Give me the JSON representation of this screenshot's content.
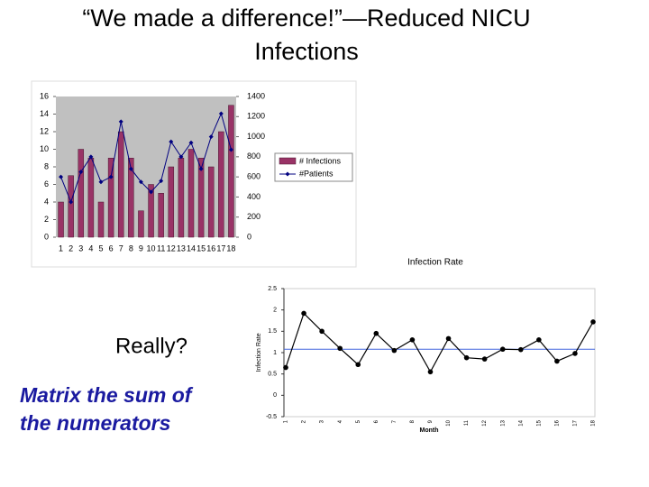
{
  "slide": {
    "title_lines": [
      "“We made a difference!”—Reduced NICU",
      "Infections"
    ],
    "question": "Really?",
    "note_lines": [
      "Matrix the sum of",
      "the numerators"
    ]
  },
  "chart_data": [
    {
      "type": "bar-line",
      "categories": [
        "1",
        "2",
        "3",
        "4",
        "5",
        "6",
        "7",
        "8",
        "9",
        "10",
        "11",
        "12",
        "13",
        "14",
        "15",
        "16",
        "17",
        "18"
      ],
      "series": [
        {
          "name": "# Infections",
          "color": "#993366",
          "values": [
            4,
            7,
            10,
            9,
            4,
            9,
            12,
            9,
            3,
            6,
            5,
            8,
            9,
            10,
            9,
            8,
            12,
            15
          ]
        },
        {
          "name": "#Patients",
          "color": "#000080",
          "axis": "y2",
          "values": [
            600,
            350,
            650,
            800,
            550,
            600,
            1150,
            680,
            550,
            450,
            560,
            950,
            800,
            940,
            680,
            1000,
            1230,
            870
          ]
        }
      ],
      "ylim": [
        0,
        16
      ],
      "yticks": [
        0,
        2,
        4,
        6,
        8,
        10,
        12,
        14,
        16
      ],
      "y2lim": [
        0,
        1400
      ],
      "y2ticks": [
        0,
        200,
        400,
        600,
        800,
        1000,
        1200,
        1400
      ],
      "plot_background": "#c0c0c0"
    },
    {
      "type": "line",
      "title": "Infection Rate",
      "x_label": "Month",
      "y_label": "Infection Rate",
      "categories": [
        "1",
        "2",
        "3",
        "4",
        "5",
        "6",
        "7",
        "8",
        "9",
        "10",
        "11",
        "12",
        "13",
        "14",
        "15",
        "16",
        "17",
        "18"
      ],
      "values": [
        0.65,
        1.92,
        1.5,
        1.1,
        0.72,
        1.45,
        1.05,
        1.3,
        0.55,
        1.33,
        0.88,
        0.85,
        1.08,
        1.07,
        1.3,
        0.8,
        0.98,
        1.72
      ],
      "color": "#000000",
      "reference_line": 1.08,
      "reference_color": "#4466dd",
      "ylim": [
        -0.5,
        2.5
      ],
      "yticks": [
        -0.5,
        0,
        0.5,
        1,
        1.5,
        2,
        2.5
      ]
    }
  ]
}
